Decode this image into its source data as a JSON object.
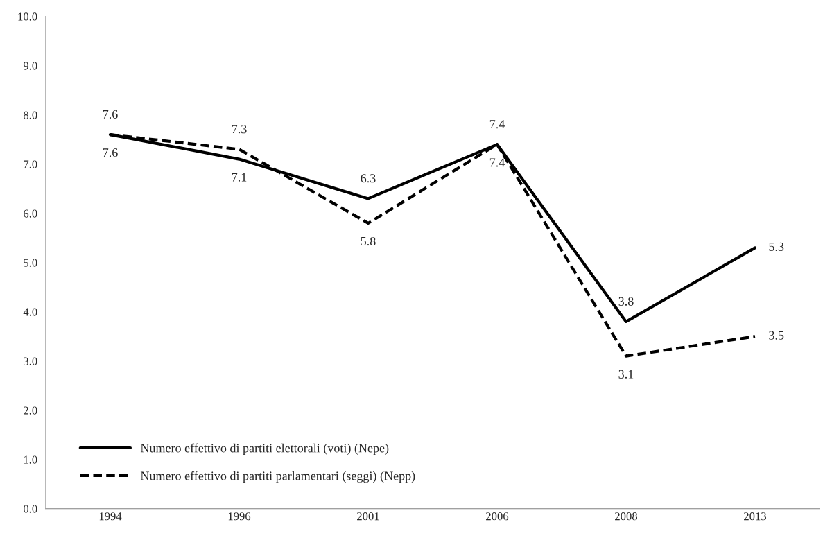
{
  "chart_data": {
    "type": "line",
    "categories": [
      "1994",
      "1996",
      "2001",
      "2006",
      "2008",
      "2013"
    ],
    "series": [
      {
        "name": "Numero effettivo di partiti elettorali (voti) (Nepe)",
        "color": "#000000",
        "line_style": "solid",
        "values": [
          7.6,
          7.1,
          6.3,
          7.4,
          3.8,
          5.3
        ]
      },
      {
        "name": "Numero effettivo di partiti parlamentari (seggi) (Nepp)",
        "color": "#000000",
        "line_style": "dashed",
        "values": [
          7.6,
          7.3,
          5.8,
          7.4,
          3.1,
          3.5
        ]
      }
    ],
    "ylim": [
      0,
      10
    ],
    "yticks": [
      {
        "value": 0,
        "label": "0.0"
      },
      {
        "value": 1,
        "label": "1.0"
      },
      {
        "value": 2,
        "label": "2.0"
      },
      {
        "value": 3,
        "label": "3.0"
      },
      {
        "value": 4,
        "label": "4.0"
      },
      {
        "value": 5,
        "label": "5.0"
      },
      {
        "value": 6,
        "label": "6.0"
      },
      {
        "value": 7,
        "label": "7.0"
      },
      {
        "value": 8,
        "label": "8.0"
      },
      {
        "value": 9,
        "label": "9.0"
      },
      {
        "value": 10,
        "label": "10.0"
      }
    ],
    "data_labels": true,
    "grid": false,
    "legend": "bottom left",
    "marker": "none"
  }
}
